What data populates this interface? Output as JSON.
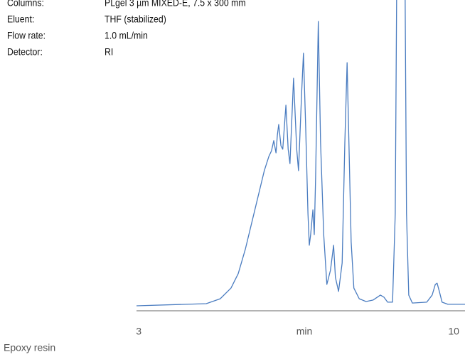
{
  "chart_data": {
    "type": "line",
    "info": [
      {
        "label": "Columns:",
        "value": "PLgel 3 µm MIXED-E, 7.5 x 300 mm"
      },
      {
        "label": "Eluent:",
        "value": "THF (stabilized)"
      },
      {
        "label": "Flow rate:",
        "value": "1.0 mL/min"
      },
      {
        "label": "Detector:",
        "value": "RI"
      }
    ],
    "xlabel": "min",
    "caption": "Epoxy resin",
    "color": "#4a7cc0",
    "xlim": [
      2.95,
      10.25
    ],
    "xticks": [
      3,
      10
    ],
    "ylim": [
      0,
      100
    ],
    "x": [
      2.95,
      4.5,
      4.81,
      5.05,
      5.21,
      5.37,
      5.6,
      5.79,
      5.89,
      5.95,
      6.0,
      6.05,
      6.08,
      6.11,
      6.16,
      6.2,
      6.27,
      6.32,
      6.36,
      6.44,
      6.51,
      6.55,
      6.62,
      6.66,
      6.71,
      6.76,
      6.79,
      6.82,
      6.87,
      6.9,
      6.93,
      6.99,
      7.04,
      7.11,
      7.18,
      7.26,
      7.33,
      7.37,
      7.44,
      7.52,
      7.58,
      7.63,
      7.67,
      7.72,
      7.78,
      7.9,
      8.05,
      8.21,
      8.37,
      8.45,
      8.53,
      8.64,
      8.7,
      8.73,
      8.83,
      8.92,
      8.95,
      9.0,
      9.08,
      9.4,
      9.52,
      9.59,
      9.63,
      9.68,
      9.74,
      9.87,
      10.25
    ],
    "values": [
      0,
      0.7,
      2.3,
      5.8,
      10.5,
      18.6,
      32.6,
      44.2,
      48.8,
      50.7,
      54.0,
      50.0,
      55.8,
      59.3,
      52.3,
      51.2,
      65.6,
      51.2,
      46.5,
      74.4,
      51.2,
      44.2,
      69.8,
      82.6,
      58.1,
      30.2,
      19.8,
      23.3,
      31.4,
      23.3,
      41.9,
      93.0,
      53.5,
      23.3,
      7.0,
      11.6,
      19.8,
      9.3,
      4.7,
      14.0,
      53.5,
      79.5,
      53.5,
      20.9,
      5.8,
      2.3,
      1.4,
      1.9,
      3.5,
      2.8,
      1.2,
      1.2,
      30.2,
      100,
      null,
      100,
      30.2,
      3.5,
      0.9,
      1.2,
      3.5,
      7.0,
      7.4,
      4.7,
      1.2,
      0.5,
      0.5
    ]
  }
}
